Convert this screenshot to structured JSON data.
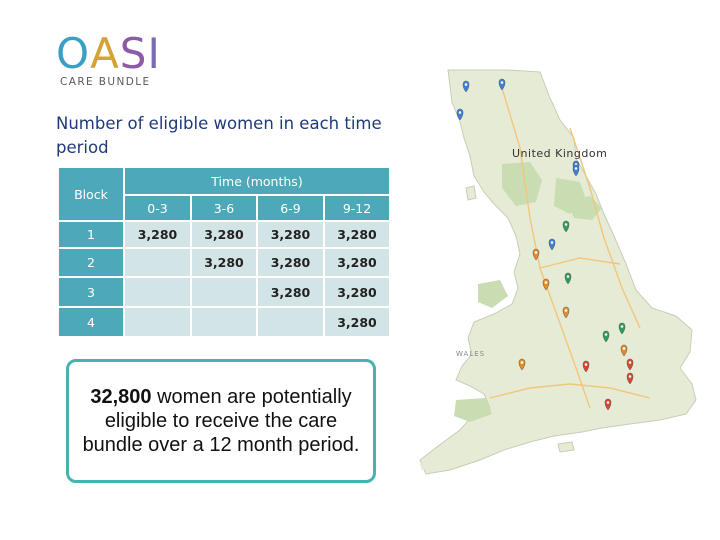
{
  "logo": {
    "letters": [
      {
        "char": "O",
        "color": "#3a9fc4"
      },
      {
        "char": "A",
        "color": "#d6a236"
      },
      {
        "char": "S",
        "color": "#8c5aa6"
      },
      {
        "char": "I",
        "color": "#7b6bb4"
      }
    ],
    "subtitle": "CARE BUNDLE"
  },
  "heading": "Number of eligible women in each time period",
  "table": {
    "block_header": "Block",
    "time_header": "Time (months)",
    "periods": [
      "0-3",
      "3-6",
      "6-9",
      "9-12"
    ],
    "rows": [
      {
        "block": "1",
        "values": [
          "3,280",
          "3,280",
          "3,280",
          "3,280"
        ]
      },
      {
        "block": "2",
        "values": [
          "",
          "3,280",
          "3,280",
          "3,280"
        ]
      },
      {
        "block": "3",
        "values": [
          "",
          "",
          "3,280",
          "3,280"
        ]
      },
      {
        "block": "4",
        "values": [
          "",
          "",
          "",
          "3,280"
        ]
      }
    ]
  },
  "callout": {
    "number": "32,800",
    "text": " women are potentially eligible to receive the care bundle over a 12 month period."
  },
  "map": {
    "title": "United Kingdom",
    "region_labels": [
      "WALES"
    ],
    "colors": {
      "land": "#e6ebd6",
      "sea": "#ffffff",
      "park": "#c9dcb2",
      "road": "#f0c77a"
    },
    "pins": [
      {
        "color": "#3b7fd8"
      },
      {
        "color": "#3b7fd8"
      },
      {
        "color": "#3b7fd8"
      },
      {
        "color": "#3b7fd8"
      },
      {
        "color": "#3b7fd8"
      },
      {
        "color": "#3b7fd8"
      },
      {
        "color": "#2e9e57"
      },
      {
        "color": "#2e9e57"
      },
      {
        "color": "#2e9e57"
      },
      {
        "color": "#2e9e57"
      },
      {
        "color": "#e58c2a"
      },
      {
        "color": "#e58c2a"
      },
      {
        "color": "#e58c2a"
      },
      {
        "color": "#e58c2a"
      },
      {
        "color": "#e58c2a"
      },
      {
        "color": "#d9462e"
      },
      {
        "color": "#d9462e"
      },
      {
        "color": "#d9462e"
      },
      {
        "color": "#d9462e"
      }
    ]
  }
}
